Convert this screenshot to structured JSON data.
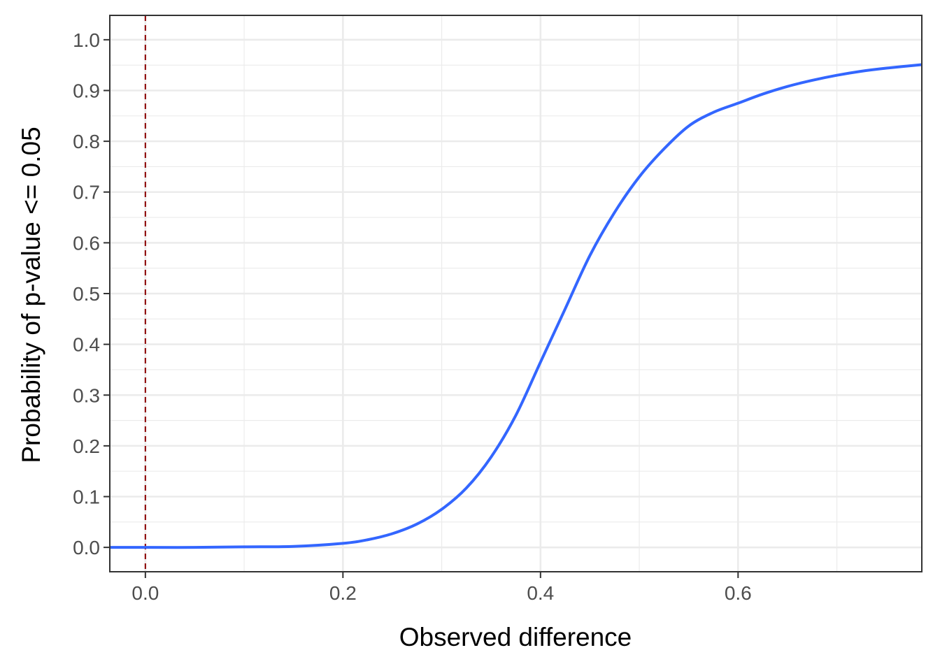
{
  "chart_data": {
    "type": "line",
    "title": "",
    "xlabel": "Observed difference",
    "ylabel": "Probability of p-value <= 0.05",
    "xlim": [
      -0.036,
      0.786
    ],
    "ylim": [
      -0.048,
      1.048
    ],
    "x_ticks": [
      0.0,
      0.2,
      0.4,
      0.6
    ],
    "x_tick_labels": [
      "0.0",
      "0.2",
      "0.4",
      "0.6"
    ],
    "y_ticks": [
      0.0,
      0.1,
      0.2,
      0.3,
      0.4,
      0.5,
      0.6,
      0.7,
      0.8,
      0.9,
      1.0
    ],
    "y_tick_labels": [
      "0.0",
      "0.1",
      "0.2",
      "0.3",
      "0.4",
      "0.5",
      "0.6",
      "0.7",
      "0.8",
      "0.9",
      "1.0"
    ],
    "grid": true,
    "legend": "none",
    "series": [
      {
        "color": "#3366ff",
        "x": [
          -0.036,
          0.0,
          0.05,
          0.1,
          0.15,
          0.2,
          0.225,
          0.25,
          0.275,
          0.3,
          0.325,
          0.35,
          0.375,
          0.4,
          0.425,
          0.45,
          0.475,
          0.5,
          0.525,
          0.55,
          0.575,
          0.6,
          0.625,
          0.65,
          0.675,
          0.7,
          0.725,
          0.75,
          0.786
        ],
        "y": [
          0.0,
          0.0,
          0.0,
          0.001,
          0.002,
          0.008,
          0.015,
          0.027,
          0.046,
          0.075,
          0.117,
          0.178,
          0.26,
          0.365,
          0.47,
          0.575,
          0.66,
          0.73,
          0.785,
          0.83,
          0.857,
          0.875,
          0.893,
          0.908,
          0.92,
          0.93,
          0.938,
          0.944,
          0.951
        ]
      }
    ],
    "reference_line": {
      "axis": "x",
      "value": 0.0,
      "style": "dashed",
      "color": "#8b0000"
    }
  }
}
